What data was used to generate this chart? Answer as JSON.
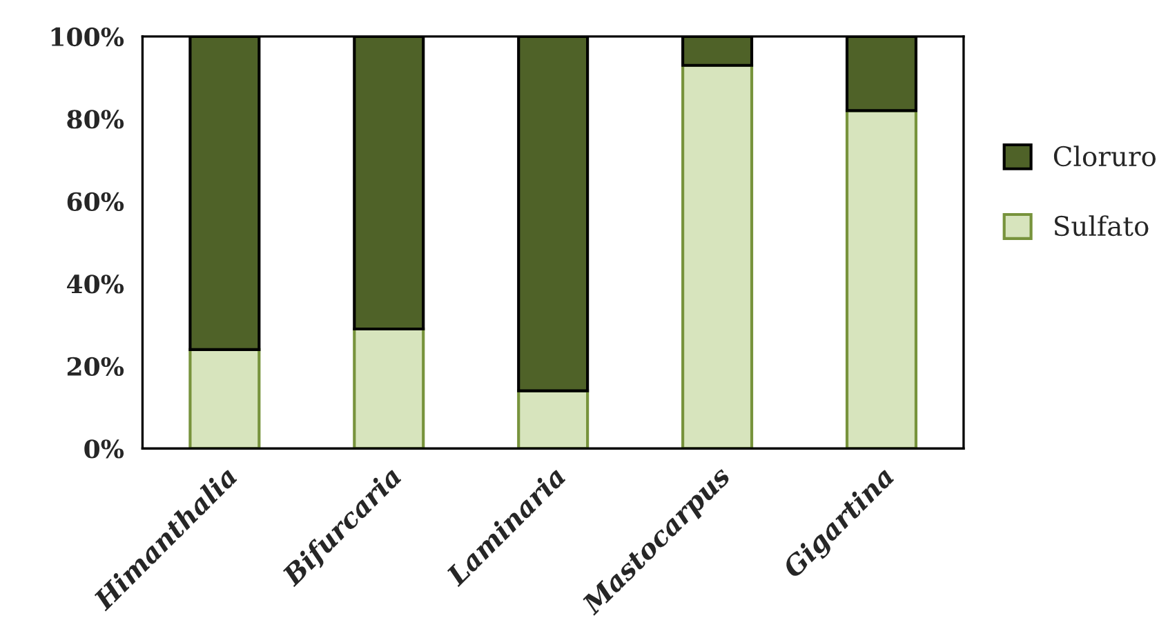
{
  "chart_data": {
    "type": "bar",
    "stacked": true,
    "categories": [
      "Himanthalia",
      "Bifurcaria",
      "Laminaria",
      "Mastocarpus",
      "Gigartina"
    ],
    "series": [
      {
        "name": "Sulfato",
        "color": "#d7e4bd",
        "values": [
          24,
          29,
          14,
          93,
          82
        ]
      },
      {
        "name": "Cloruro",
        "color": "#4f6228",
        "values": [
          76,
          71,
          86,
          7,
          18
        ]
      }
    ],
    "ylim": [
      0,
      100
    ],
    "yticks": [
      {
        "value": 0,
        "label": "0%"
      },
      {
        "value": 20,
        "label": "20%"
      },
      {
        "value": 40,
        "label": "40%"
      },
      {
        "value": 60,
        "label": "60%"
      },
      {
        "value": 80,
        "label": "80%"
      },
      {
        "value": 100,
        "label": "100%"
      }
    ],
    "grid": false,
    "legend": "right"
  }
}
